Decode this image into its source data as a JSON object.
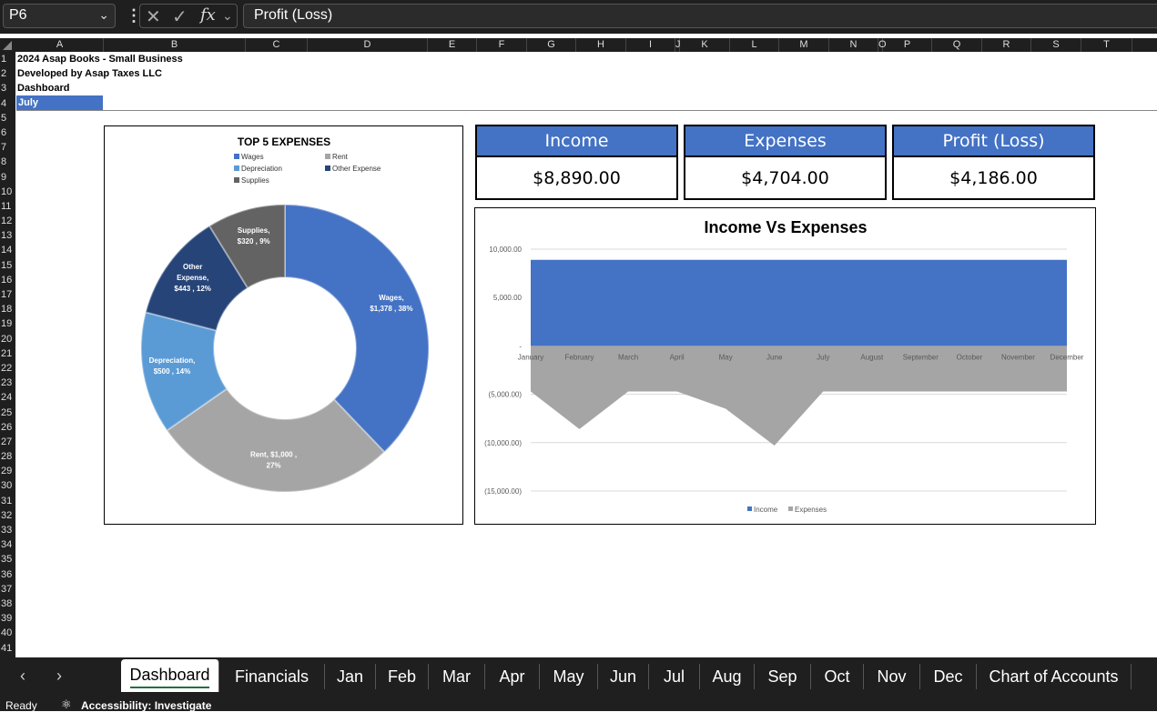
{
  "formula_bar": {
    "name_box": "P6",
    "formula": "Profit (Loss)"
  },
  "columns": [
    "A",
    "B",
    "C",
    "D",
    "E",
    "F",
    "G",
    "H",
    "I",
    "J",
    "K",
    "L",
    "M",
    "N",
    "O",
    "P",
    "Q",
    "R",
    "S",
    "T"
  ],
  "rows": [
    "1",
    "2",
    "3",
    "4",
    "5",
    "6",
    "7",
    "8",
    "9",
    "10",
    "11",
    "12",
    "13",
    "14",
    "15",
    "16",
    "17",
    "18",
    "19",
    "20",
    "21",
    "22",
    "23",
    "24",
    "25",
    "26",
    "27",
    "28",
    "29",
    "30",
    "31",
    "32",
    "33",
    "34",
    "35",
    "36",
    "37",
    "38",
    "39",
    "40",
    "41"
  ],
  "cells": {
    "a1": "2024 Asap Books - Small Business",
    "a2": "Developed by Asap Taxes LLC",
    "a3": "Dashboard",
    "a4": "July"
  },
  "kpis": [
    {
      "label": "Income",
      "value": "$8,890.00"
    },
    {
      "label": "Expenses",
      "value": "$4,704.00"
    },
    {
      "label": "Profit (Loss)",
      "value": "$4,186.00"
    }
  ],
  "chart_data": [
    {
      "type": "pie",
      "title": "TOP 5 EXPENSES",
      "legend": [
        "Wages",
        "Rent",
        "Depreciation",
        "Other Expense",
        "Supplies"
      ],
      "legend_position": "top",
      "slices": [
        {
          "name": "Wages",
          "value": 1378,
          "label_l1": "Wages,",
          "label_l2": "$1,378 , 38%",
          "color": "#4472c4"
        },
        {
          "name": "Rent",
          "value": 1000,
          "label_l1": "Rent,  $1,000 ,",
          "label_l2": "27%",
          "color": "#a5a5a5"
        },
        {
          "name": "Depreciation",
          "value": 500,
          "label_l1": "Depreciation,",
          "label_l2": "$500 , 14%",
          "color": "#5b9bd5"
        },
        {
          "name": "Other Expense",
          "value": 443,
          "label_l1": "Other",
          "label_l2": "Expense,",
          "label_l3": "$443 , 12%",
          "color": "#264478"
        },
        {
          "name": "Supplies",
          "value": 320,
          "label_l1": "Supplies,",
          "label_l2": "$320 , 9%",
          "color": "#636363"
        }
      ]
    },
    {
      "type": "area",
      "title": "Income Vs Expenses",
      "categories": [
        "January",
        "February",
        "March",
        "April",
        "May",
        "June",
        "July",
        "August",
        "September",
        "October",
        "November",
        "December"
      ],
      "series": [
        {
          "name": "Income",
          "values": [
            8890,
            8890,
            8890,
            8890,
            8890,
            8890,
            8890,
            8890,
            8890,
            8890,
            8890,
            8890
          ],
          "color": "#4472c4"
        },
        {
          "name": "Expenses",
          "values": [
            -4704,
            -8600,
            -4704,
            -4704,
            -6500,
            -10300,
            -4704,
            -4704,
            -4704,
            -4704,
            -4704,
            -4704
          ],
          "color": "#a5a5a5"
        }
      ],
      "yticks": [
        "10,000.00",
        "5,000.00",
        "-",
        "(5,000.00)",
        "(10,000.00)",
        "(15,000.00)"
      ],
      "ylim": [
        -15000,
        10000
      ],
      "legend_position": "bottom",
      "grid": true
    }
  ],
  "sheet_tabs": [
    "Dashboard",
    "Financials",
    "Jan",
    "Feb",
    "Mar",
    "Apr",
    "May",
    "Jun",
    "Jul",
    "Aug",
    "Sep",
    "Oct",
    "Nov",
    "Dec",
    "Chart of Accounts"
  ],
  "status": {
    "ready": "Ready",
    "accessibility": "Accessibility: Investigate"
  }
}
